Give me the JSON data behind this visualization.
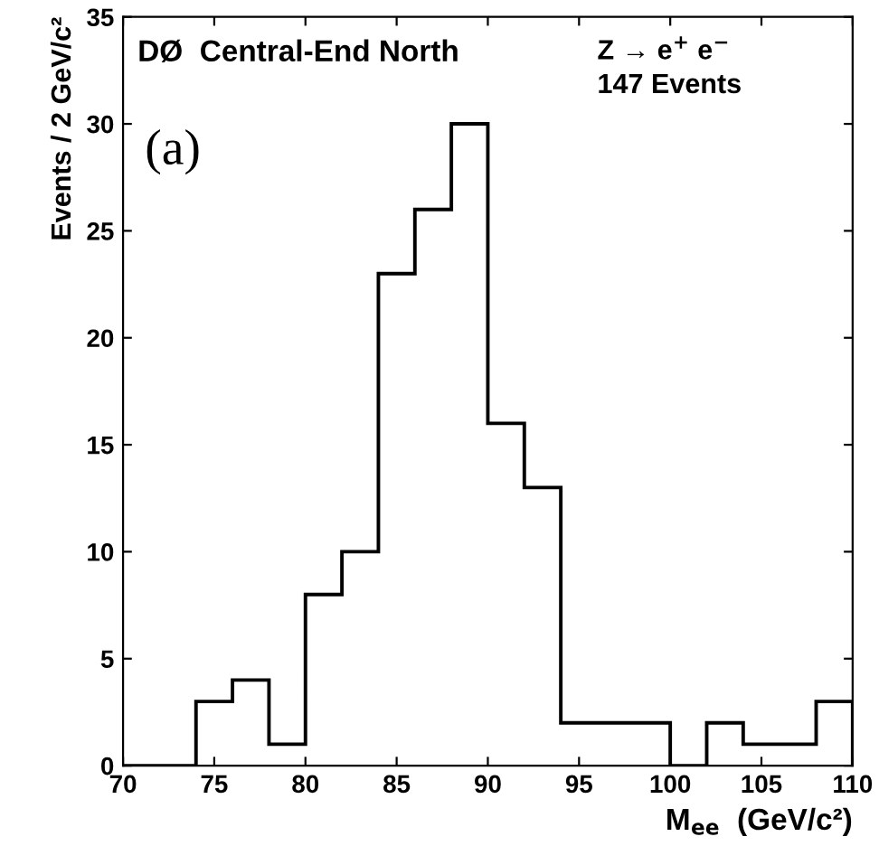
{
  "chart_data": {
    "type": "histogram",
    "xlabel": "M$_{ee}$  (GeV/c²)",
    "ylabel": "Events / 2 GeV/c²",
    "annotations": [
      "DØ  Central-End North",
      "Z → e$^{+}$ e$^{−}$",
      "147 Events",
      "(a)"
    ],
    "bins": [
      70,
      72,
      74,
      76,
      78,
      80,
      82,
      84,
      86,
      88,
      90,
      92,
      94,
      96,
      98,
      100,
      102,
      104,
      106,
      108,
      110
    ],
    "values": [
      0,
      0,
      3,
      4,
      1,
      8,
      10,
      23,
      26,
      30,
      16,
      13,
      2,
      2,
      2,
      0,
      2,
      1,
      1,
      3
    ],
    "color": "#000000",
    "xlim": [
      70,
      110
    ],
    "xticks": [
      70,
      75,
      80,
      85,
      90,
      95,
      100,
      105,
      110
    ],
    "ylim": [
      0,
      35
    ],
    "yticks": [
      0,
      5,
      10,
      15,
      20,
      25,
      30,
      35
    ],
    "grid": false
  }
}
